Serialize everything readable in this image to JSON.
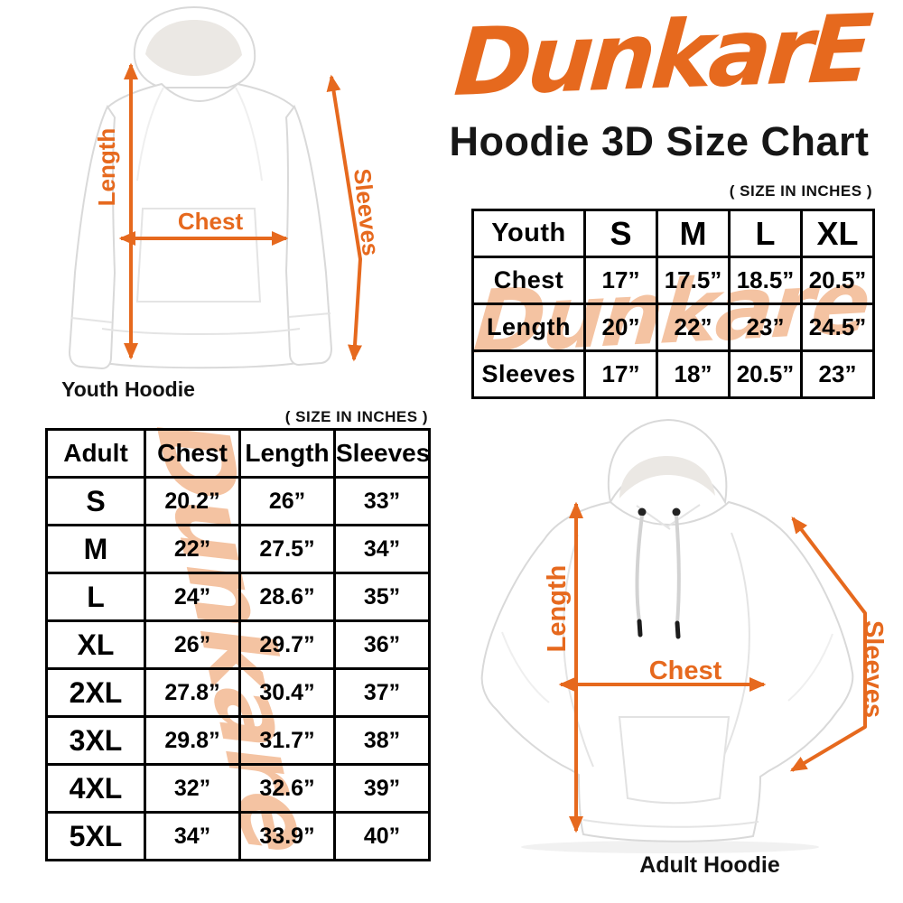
{
  "brand": {
    "logo_text": "DunkarE"
  },
  "title": "Hoodie 3D Size Chart",
  "size_note": "( SIZE IN INCHES )",
  "watermark_text": "Dunkare",
  "accent_color": "#E6691E",
  "watermark_color": "#F4C3A2",
  "youth_figure": {
    "caption": "Youth Hoodie",
    "length_label": "Length",
    "chest_label": "Chest",
    "sleeves_label": "Sleeves"
  },
  "adult_figure": {
    "caption": "Adult Hoodie",
    "length_label": "Length",
    "chest_label": "Chest",
    "sleeves_label": "Sleeves"
  },
  "youth_table": {
    "header": [
      "Youth",
      "S",
      "M",
      "L",
      "XL"
    ],
    "rows": [
      [
        "Chest",
        "17”",
        "17.5”",
        "18.5”",
        "20.5”"
      ],
      [
        "Length",
        "20”",
        "22”",
        "23”",
        "24.5”"
      ],
      [
        "Sleeves",
        "17”",
        "18”",
        "20.5”",
        "23”"
      ]
    ]
  },
  "adult_table": {
    "header": [
      "Adult",
      "Chest",
      "Length",
      "Sleeves"
    ],
    "rows": [
      [
        "S",
        "20.2”",
        "26”",
        "33”"
      ],
      [
        "M",
        "22”",
        "27.5”",
        "34”"
      ],
      [
        "L",
        "24”",
        "28.6”",
        "35”"
      ],
      [
        "XL",
        "26”",
        "29.7”",
        "36”"
      ],
      [
        "2XL",
        "27.8”",
        "30.4”",
        "37”"
      ],
      [
        "3XL",
        "29.8”",
        "31.7”",
        "38”"
      ],
      [
        "4XL",
        "32”",
        "32.6”",
        "39”"
      ],
      [
        "5XL",
        "34”",
        "33.9”",
        "40”"
      ]
    ]
  }
}
